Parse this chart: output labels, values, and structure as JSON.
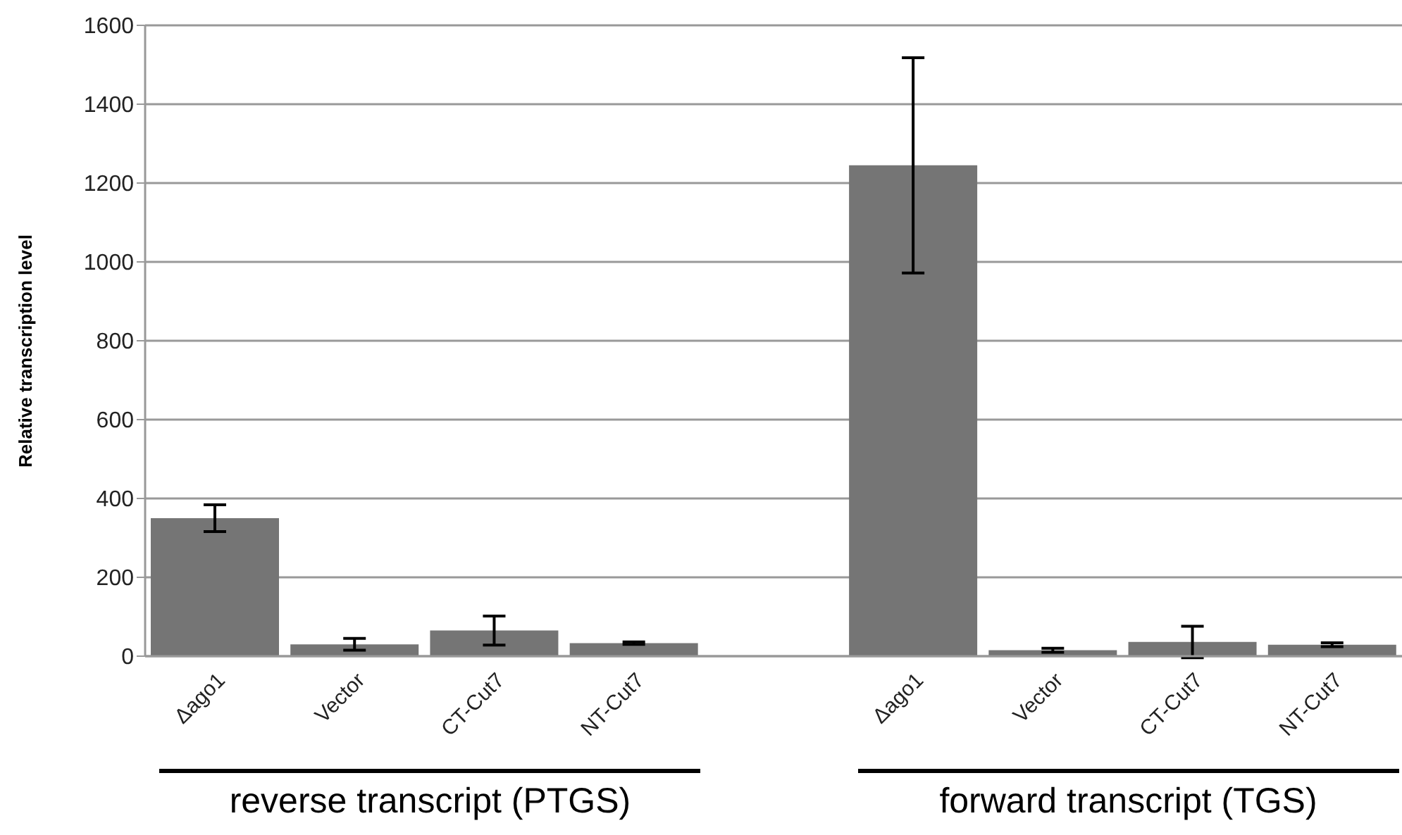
{
  "chart_data": {
    "type": "bar",
    "ylabel": "Relative transcription level",
    "categories": [
      "Δago1",
      "Vector",
      "CT-Cut7",
      "NT-Cut7",
      null,
      "Δago1",
      "Vector",
      "CT-Cut7",
      "NT-Cut7"
    ],
    "values": [
      350,
      30,
      65,
      33,
      null,
      1245,
      15,
      36,
      29
    ],
    "errors": [
      34,
      15,
      37,
      3,
      null,
      273,
      5,
      40,
      5
    ],
    "color": "#757575",
    "ylim": [
      0,
      1600
    ],
    "yticks": [
      0,
      200,
      400,
      600,
      800,
      1000,
      1200,
      1400,
      1600
    ],
    "grid": "y",
    "annotations": [
      "reverse transcript (PTGS)",
      "forward transcript (TGS)"
    ]
  }
}
